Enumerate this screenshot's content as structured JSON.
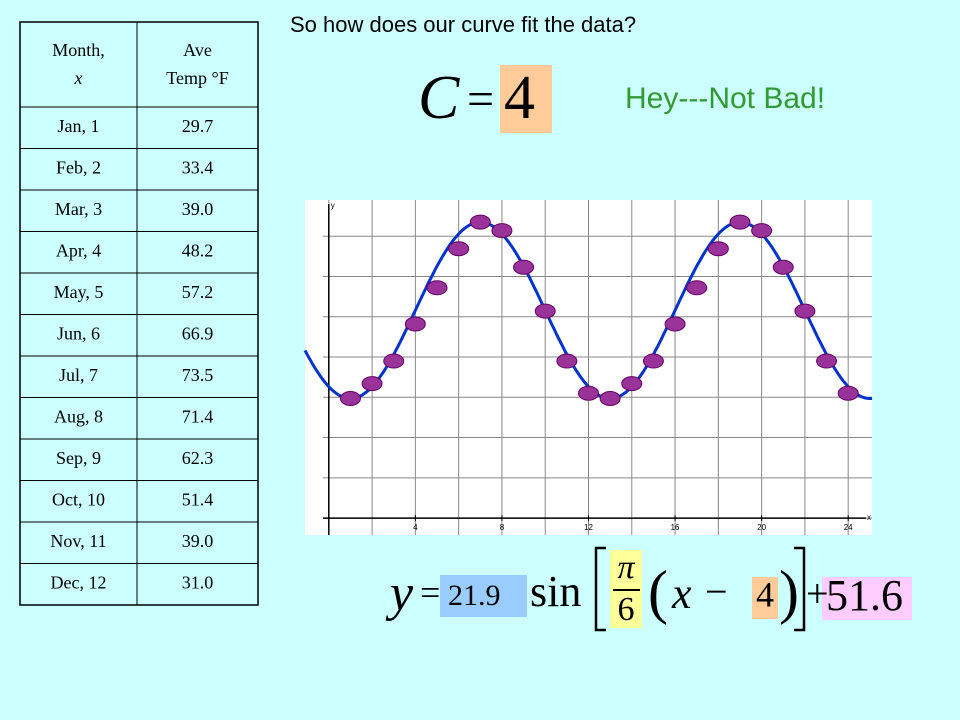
{
  "title": "So how does our curve fit the data?",
  "table": {
    "header": [
      [
        "Month,",
        "x"
      ],
      [
        "Ave",
        "Temp °F"
      ]
    ],
    "rows": [
      [
        "Jan, 1",
        "29.7"
      ],
      [
        "Feb, 2",
        "33.4"
      ],
      [
        "Mar, 3",
        "39.0"
      ],
      [
        "Apr, 4",
        "48.2"
      ],
      [
        "May, 5",
        "57.2"
      ],
      [
        "Jun, 6",
        "66.9"
      ],
      [
        "Jul, 7",
        "73.5"
      ],
      [
        "Aug, 8",
        "71.4"
      ],
      [
        "Sep, 9",
        "62.3"
      ],
      [
        "Oct, 10",
        "51.4"
      ],
      [
        "Nov, 11",
        "39.0"
      ],
      [
        "Dec, 12",
        "31.0"
      ]
    ]
  },
  "equation_c": {
    "lhs": "C",
    "eq": "=",
    "value": 4
  },
  "annotation": "Hey---Not Bad!",
  "graph": {
    "xlabel": "x",
    "ylabel": "y",
    "xlim": [
      -1.1,
      25.1
    ],
    "ylim": [
      -4.2,
      79
    ],
    "xticks": [
      4,
      8,
      12,
      16,
      20,
      24
    ],
    "xgrid": [
      0,
      2,
      4,
      6,
      8,
      10,
      12,
      14,
      16,
      18,
      20,
      22,
      24
    ],
    "ygrid": [
      0,
      10,
      20,
      30,
      40,
      50,
      60,
      70
    ],
    "curve_color": "#0033cc",
    "point_color": "#993399"
  },
  "equation": {
    "y": "y",
    "eq": "=",
    "amplitude": 21.9,
    "func": "sin",
    "num": "π",
    "den": 6,
    "x": "x",
    "minus": "−",
    "shift": 4,
    "plus": "+",
    "midline": 51.6
  }
}
